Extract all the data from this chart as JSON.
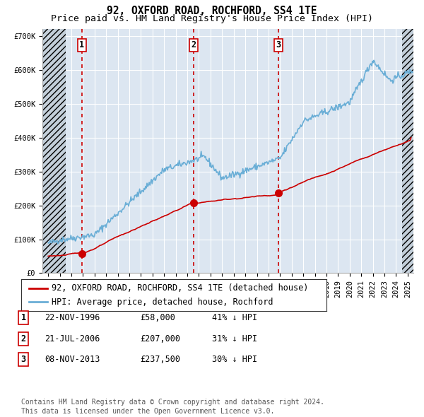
{
  "title": "92, OXFORD ROAD, ROCHFORD, SS4 1TE",
  "subtitle": "Price paid vs. HM Land Registry's House Price Index (HPI)",
  "ylim": [
    0,
    720000
  ],
  "yticks": [
    0,
    100000,
    200000,
    300000,
    400000,
    500000,
    600000,
    700000
  ],
  "ytick_labels": [
    "£0",
    "£100K",
    "£200K",
    "£300K",
    "£400K",
    "£500K",
    "£600K",
    "£700K"
  ],
  "background_color": "#ffffff",
  "plot_bg_color": "#dce6f1",
  "hatch_color": "#b8c4d0",
  "grid_color": "#ffffff",
  "hpi_color": "#6aaed6",
  "price_color": "#cc0000",
  "vline_color": "#cc0000",
  "marker_color": "#cc0000",
  "sale_points": [
    {
      "date_x": 1996.9,
      "price": 58000,
      "label": "1"
    },
    {
      "date_x": 2006.55,
      "price": 207000,
      "label": "2"
    },
    {
      "date_x": 2013.85,
      "price": 237500,
      "label": "3"
    }
  ],
  "legend_entries": [
    "92, OXFORD ROAD, ROCHFORD, SS4 1TE (detached house)",
    "HPI: Average price, detached house, Rochford"
  ],
  "table_rows": [
    [
      "1",
      "22-NOV-1996",
      "£58,000",
      "41% ↓ HPI"
    ],
    [
      "2",
      "21-JUL-2006",
      "£207,000",
      "31% ↓ HPI"
    ],
    [
      "3",
      "08-NOV-2013",
      "£237,500",
      "30% ↓ HPI"
    ]
  ],
  "footnote": "Contains HM Land Registry data © Crown copyright and database right 2024.\nThis data is licensed under the Open Government Licence v3.0.",
  "xlim_start": 1993.5,
  "xlim_end": 2025.5,
  "hatch_end_x": 1995.5,
  "hatch_start_x": 2024.5,
  "title_fontsize": 10.5,
  "subtitle_fontsize": 9.5,
  "tick_fontsize": 7.5,
  "legend_fontsize": 8.5,
  "table_fontsize": 8.5,
  "footnote_fontsize": 7.0
}
